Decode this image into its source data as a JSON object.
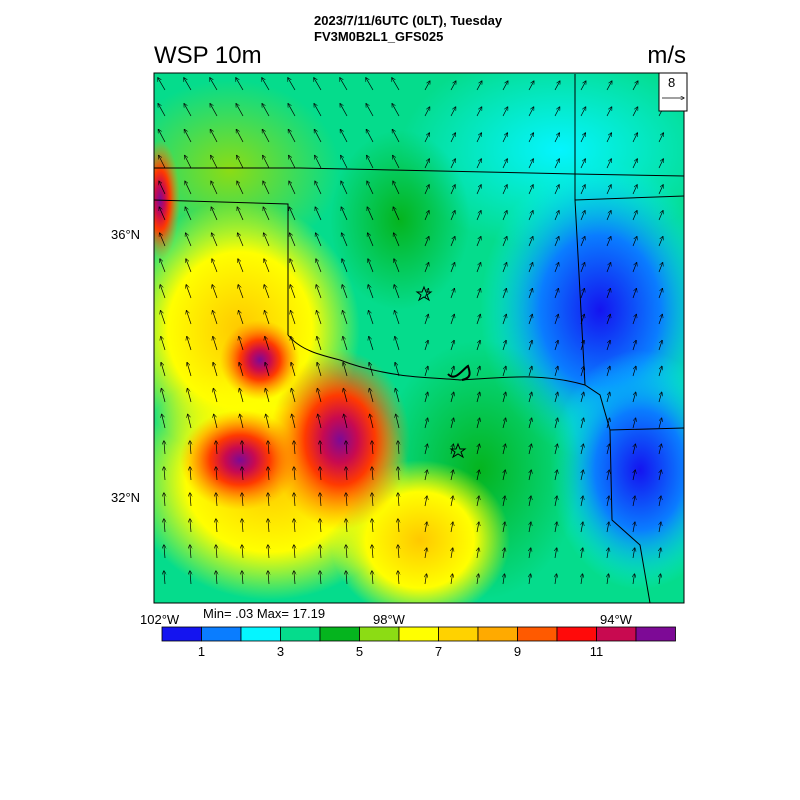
{
  "header": {
    "run_date": "2023/7/11/6UTC (0LT), Tuesday",
    "model": "FV3M0B2L1_GFS025",
    "field": "WSP 10m",
    "unit": "m/s"
  },
  "map": {
    "lat_labels": [
      "36°N",
      "32°N"
    ],
    "lon_labels": [
      "102°W",
      "98°W",
      "94°W"
    ],
    "reference_vector": {
      "value": "8"
    },
    "stats": "Min= .03 Max= 17.19",
    "markers": [
      "star",
      "star"
    ]
  },
  "colorbar": {
    "colors": [
      "#1414f0",
      "#0a7dff",
      "#05f5ff",
      "#05dc8c",
      "#05b41e",
      "#8cdc14",
      "#ffff00",
      "#ffd200",
      "#ffaa00",
      "#ff5a00",
      "#ff0a0a",
      "#c80a50",
      "#7d0a96"
    ],
    "labels": [
      "1",
      "3",
      "5",
      "7",
      "9",
      "11"
    ]
  }
}
